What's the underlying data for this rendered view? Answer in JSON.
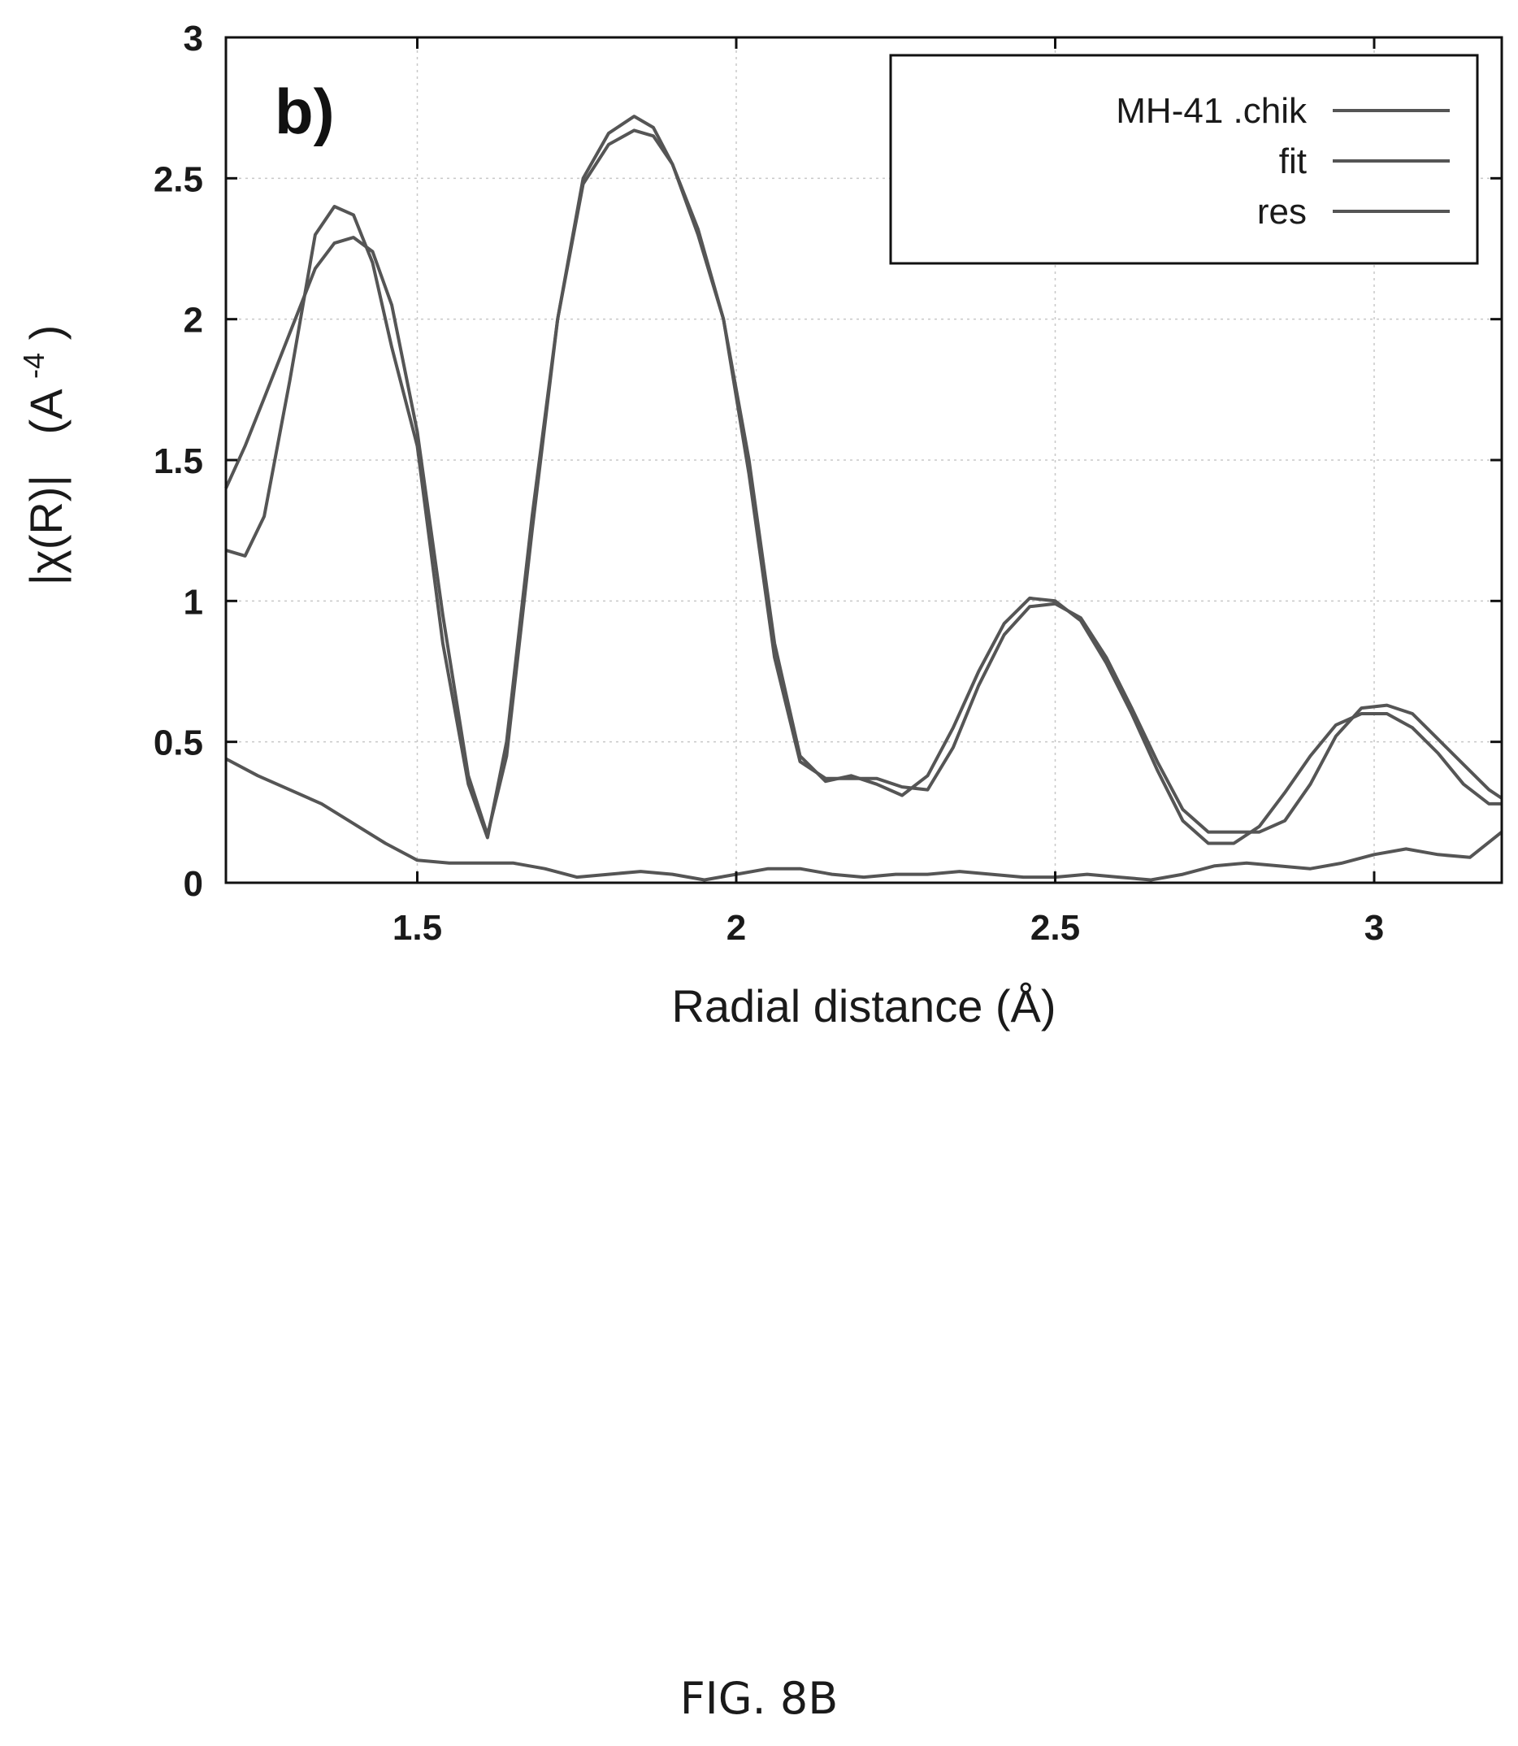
{
  "chart_data": {
    "type": "line",
    "panel_label": "b)",
    "xlabel": "Radial distance    (Å)",
    "ylabel_main": "|χ(R)|",
    "ylabel_unit": "(A",
    "ylabel_exp": "-4",
    "ylabel_close": ")",
    "xlim": [
      1.2,
      3.2
    ],
    "ylim": [
      0,
      3
    ],
    "xticks": [
      "1.5",
      "2",
      "2.5",
      "3"
    ],
    "yticks": [
      "0",
      "0.5",
      "1",
      "1.5",
      "2",
      "2.5",
      "3"
    ],
    "grid": true,
    "legend_position": "top-right",
    "series": [
      {
        "name": "MH-41 .chik",
        "x": [
          1.2,
          1.23,
          1.26,
          1.3,
          1.34,
          1.37,
          1.4,
          1.43,
          1.46,
          1.5,
          1.54,
          1.58,
          1.61,
          1.64,
          1.68,
          1.72,
          1.76,
          1.8,
          1.84,
          1.87,
          1.9,
          1.94,
          1.98,
          2.02,
          2.06,
          2.1,
          2.14,
          2.18,
          2.22,
          2.26,
          2.3,
          2.34,
          2.38,
          2.42,
          2.46,
          2.5,
          2.54,
          2.58,
          2.62,
          2.66,
          2.7,
          2.74,
          2.78,
          2.82,
          2.86,
          2.9,
          2.94,
          2.98,
          3.02,
          3.06,
          3.1,
          3.14,
          3.18,
          3.2
        ],
        "values": [
          1.18,
          1.16,
          1.3,
          1.78,
          2.3,
          2.4,
          2.37,
          2.2,
          1.9,
          1.55,
          0.85,
          0.35,
          0.16,
          0.5,
          1.3,
          2.0,
          2.5,
          2.66,
          2.72,
          2.68,
          2.55,
          2.3,
          2.0,
          1.5,
          0.85,
          0.45,
          0.36,
          0.38,
          0.35,
          0.31,
          0.38,
          0.55,
          0.75,
          0.92,
          1.01,
          1.0,
          0.93,
          0.78,
          0.6,
          0.4,
          0.22,
          0.14,
          0.14,
          0.2,
          0.32,
          0.45,
          0.56,
          0.6,
          0.6,
          0.55,
          0.46,
          0.35,
          0.28,
          0.28
        ]
      },
      {
        "name": "fit",
        "x": [
          1.2,
          1.23,
          1.26,
          1.3,
          1.34,
          1.37,
          1.4,
          1.43,
          1.46,
          1.5,
          1.54,
          1.58,
          1.61,
          1.64,
          1.68,
          1.72,
          1.76,
          1.8,
          1.84,
          1.87,
          1.9,
          1.94,
          1.98,
          2.02,
          2.06,
          2.1,
          2.14,
          2.18,
          2.22,
          2.26,
          2.3,
          2.34,
          2.38,
          2.42,
          2.46,
          2.5,
          2.54,
          2.58,
          2.62,
          2.66,
          2.7,
          2.74,
          2.78,
          2.82,
          2.86,
          2.9,
          2.94,
          2.98,
          3.02,
          3.06,
          3.1,
          3.14,
          3.18,
          3.2
        ],
        "values": [
          1.4,
          1.55,
          1.72,
          1.95,
          2.18,
          2.27,
          2.29,
          2.24,
          2.05,
          1.6,
          0.95,
          0.38,
          0.17,
          0.45,
          1.25,
          2.0,
          2.48,
          2.62,
          2.67,
          2.65,
          2.55,
          2.32,
          2.0,
          1.45,
          0.8,
          0.43,
          0.37,
          0.37,
          0.37,
          0.34,
          0.33,
          0.48,
          0.7,
          0.88,
          0.98,
          0.99,
          0.94,
          0.8,
          0.62,
          0.43,
          0.26,
          0.18,
          0.18,
          0.18,
          0.22,
          0.35,
          0.52,
          0.62,
          0.63,
          0.6,
          0.51,
          0.42,
          0.33,
          0.3
        ]
      },
      {
        "name": "res",
        "x": [
          1.2,
          1.25,
          1.3,
          1.35,
          1.4,
          1.45,
          1.5,
          1.55,
          1.6,
          1.65,
          1.7,
          1.75,
          1.8,
          1.85,
          1.9,
          1.95,
          2.0,
          2.05,
          2.1,
          2.15,
          2.2,
          2.25,
          2.3,
          2.35,
          2.4,
          2.45,
          2.5,
          2.55,
          2.6,
          2.65,
          2.7,
          2.75,
          2.8,
          2.85,
          2.9,
          2.95,
          3.0,
          3.05,
          3.1,
          3.15,
          3.2
        ],
        "values": [
          0.44,
          0.38,
          0.33,
          0.28,
          0.21,
          0.14,
          0.08,
          0.07,
          0.07,
          0.07,
          0.05,
          0.02,
          0.03,
          0.04,
          0.03,
          0.01,
          0.03,
          0.05,
          0.05,
          0.03,
          0.02,
          0.03,
          0.03,
          0.04,
          0.03,
          0.02,
          0.02,
          0.03,
          0.02,
          0.01,
          0.03,
          0.06,
          0.07,
          0.06,
          0.05,
          0.07,
          0.1,
          0.12,
          0.1,
          0.09,
          0.18
        ]
      }
    ]
  },
  "figure_caption": "FIG. 8B",
  "colors": {
    "series_line": "#555555",
    "axis": "#111111",
    "grid": "#c8c8c8"
  }
}
